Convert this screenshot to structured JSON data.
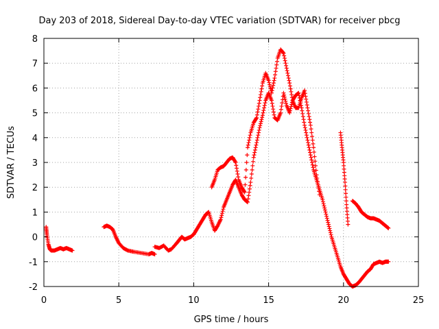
{
  "chart_data": {
    "type": "scatter",
    "title": "Day 203 of 2018, Sidereal Day-to-day VTEC variation (SDTVAR) for receiver pbcg",
    "xlabel": "GPS time / hours",
    "ylabel": "SDTVAR / TECUs",
    "xlim": [
      0,
      25
    ],
    "ylim": [
      -2,
      8
    ],
    "xticks": [
      "0",
      "5",
      "10",
      "15",
      "20",
      "25"
    ],
    "yticks": [
      "-2",
      "-1",
      "0",
      "1",
      "2",
      "3",
      "4",
      "5",
      "6",
      "7",
      "8"
    ],
    "xtick_values": [
      0,
      5,
      10,
      15,
      20,
      25
    ],
    "ytick_values": [
      -2,
      -1,
      0,
      1,
      2,
      3,
      4,
      5,
      6,
      7,
      8
    ],
    "grid": true,
    "marker": "+",
    "color": "#ff0000",
    "series": [
      {
        "name": "SDTVAR",
        "segments": [
          {
            "x": [
              0.15,
              0.2,
              0.3,
              0.4,
              0.5,
              0.7,
              0.9,
              1.1,
              1.3,
              1.5,
              1.7,
              1.9
            ],
            "y": [
              0.4,
              0.1,
              -0.3,
              -0.5,
              -0.55,
              -0.55,
              -0.5,
              -0.45,
              -0.5,
              -0.45,
              -0.5,
              -0.55
            ]
          },
          {
            "x": [
              4.0,
              4.2,
              4.4,
              4.6,
              4.8,
              5.0,
              5.3,
              5.6,
              6.0,
              6.5,
              7.0,
              7.2,
              7.4
            ],
            "y": [
              0.4,
              0.45,
              0.4,
              0.3,
              0.0,
              -0.25,
              -0.45,
              -0.55,
              -0.6,
              -0.65,
              -0.7,
              -0.65,
              -0.7
            ]
          },
          {
            "x": [
              7.4,
              7.7,
              8.0,
              8.3,
              8.5,
              8.8,
              9.0,
              9.2,
              9.4,
              9.6,
              9.8,
              10.0,
              10.2,
              10.4,
              10.6,
              10.8,
              11.0,
              11.2,
              11.4,
              11.6,
              11.8,
              12.0,
              12.2,
              12.4,
              12.6,
              12.8,
              13.0,
              13.2,
              13.4,
              13.6,
              13.8,
              14.0,
              14.2,
              14.4,
              14.6,
              14.8,
              15.0,
              15.2,
              15.4,
              15.6,
              15.8,
              16.0,
              16.2,
              16.4,
              16.6,
              16.8,
              17.0,
              17.2,
              17.4,
              17.6,
              17.8,
              18.0,
              18.2,
              18.4,
              18.6,
              18.8,
              19.0,
              19.2,
              19.4,
              19.6,
              19.8,
              20.0,
              20.2,
              20.4,
              20.6,
              20.8,
              21.0,
              21.2,
              21.4,
              21.6,
              21.8,
              22.0,
              22.2,
              22.4,
              22.6,
              22.8,
              23.0
            ],
            "y": [
              -0.4,
              -0.45,
              -0.35,
              -0.55,
              -0.5,
              -0.3,
              -0.15,
              0.0,
              -0.1,
              -0.05,
              0.0,
              0.1,
              0.3,
              0.5,
              0.7,
              0.9,
              1.0,
              0.6,
              0.25,
              0.45,
              0.7,
              1.2,
              1.5,
              1.8,
              2.1,
              2.3,
              2.0,
              1.7,
              1.5,
              1.4,
              2.2,
              3.2,
              3.8,
              4.4,
              4.9,
              5.5,
              5.8,
              5.5,
              4.8,
              4.7,
              5.0,
              5.8,
              5.3,
              5.0,
              5.5,
              5.7,
              5.8,
              5.2,
              4.5,
              3.9,
              3.3,
              2.7,
              2.3,
              1.9,
              1.5,
              1.0,
              0.5,
              0.0,
              -0.4,
              -0.8,
              -1.2,
              -1.5,
              -1.7,
              -1.9,
              -2.0,
              -1.95,
              -1.85,
              -1.7,
              -1.55,
              -1.4,
              -1.3,
              -1.1,
              -1.05,
              -1.0,
              -1.05,
              -1.0,
              -1.0
            ]
          },
          {
            "x": [
              11.2,
              11.4,
              11.6,
              11.8,
              12.0,
              12.2,
              12.4,
              12.6,
              12.8,
              13.0,
              13.2,
              13.4,
              13.6,
              13.8,
              14.0,
              14.2,
              14.4,
              14.6,
              14.8,
              15.0,
              15.2,
              15.4,
              15.6,
              15.8,
              16.0,
              16.2,
              16.4,
              16.6,
              16.8,
              17.0,
              17.2,
              17.4,
              17.6,
              17.8,
              18.0,
              18.2,
              18.4
            ],
            "y": [
              2.0,
              2.3,
              2.7,
              2.8,
              2.85,
              3.0,
              3.15,
              3.2,
              3.0,
              2.3,
              2.0,
              1.8,
              3.6,
              4.2,
              4.6,
              4.8,
              5.5,
              6.2,
              6.6,
              6.3,
              5.8,
              6.4,
              7.2,
              7.55,
              7.4,
              6.8,
              6.2,
              5.5,
              5.2,
              5.2,
              5.6,
              5.9,
              5.2,
              4.5,
              3.6,
              2.5,
              1.7
            ]
          },
          {
            "x": [
              19.8,
              19.9,
              20.0,
              20.1,
              20.2,
              20.3
            ],
            "y": [
              4.2,
              3.6,
              3.0,
              2.2,
              1.3,
              0.5
            ]
          },
          {
            "x": [
              20.6,
              20.8,
              21.0,
              21.2,
              21.4,
              21.6,
              21.8,
              22.0,
              22.2,
              22.4,
              22.6,
              22.8,
              23.0
            ],
            "y": [
              1.45,
              1.35,
              1.2,
              1.0,
              0.9,
              0.8,
              0.75,
              0.75,
              0.7,
              0.65,
              0.55,
              0.45,
              0.35
            ]
          }
        ]
      }
    ]
  }
}
